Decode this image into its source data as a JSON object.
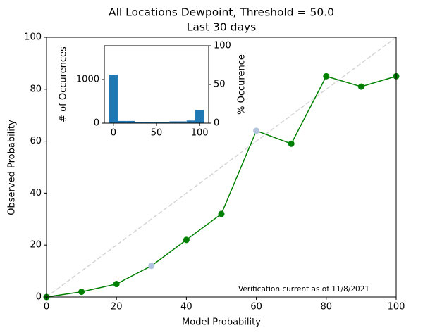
{
  "chart_data": [
    {
      "type": "line",
      "title": "All Locations Dewpoint, Threshold = 50.0",
      "subtitle": "Last 30 days",
      "x_label": "Model Probability",
      "y_label": "Observed Probability",
      "x": [
        0,
        10,
        20,
        30,
        40,
        50,
        60,
        70,
        80,
        90,
        100
      ],
      "values": [
        0,
        2,
        5,
        12,
        22,
        32,
        64,
        59,
        85,
        81,
        85
      ],
      "color": "#008000",
      "marker_colors": [
        "#008000",
        "#008000",
        "#008000",
        "#b0c4de",
        "#008000",
        "#008000",
        "#b0c4de",
        "#008000",
        "#008000",
        "#008000",
        "#008000"
      ],
      "diagonal": true,
      "diagonal_color": "#d3d3d3",
      "xlim": [
        0,
        100
      ],
      "ylim": [
        0,
        100
      ],
      "xticks": [
        0,
        20,
        40,
        60,
        80,
        100
      ],
      "yticks": [
        0,
        20,
        40,
        60,
        80,
        100
      ],
      "annotation": "Verification current as of 11/8/2021"
    },
    {
      "type": "histogram",
      "y_label": "# of Occurences",
      "y2_label": "% Occurence",
      "bins": [
        -5,
        5,
        15,
        25,
        35,
        45,
        55,
        65,
        75,
        85,
        95,
        105
      ],
      "values": [
        1110,
        50,
        50,
        25,
        25,
        20,
        20,
        40,
        40,
        60,
        300
      ],
      "color": "#1f77b4",
      "xlim": [
        -10.5,
        110.5
      ],
      "ylim": [
        0,
        1774
      ],
      "y2lim": [
        0,
        100
      ],
      "xticks": [
        0,
        50,
        100
      ],
      "yticks": [
        0,
        1000
      ],
      "y2ticks": [
        0,
        50,
        100
      ]
    }
  ]
}
